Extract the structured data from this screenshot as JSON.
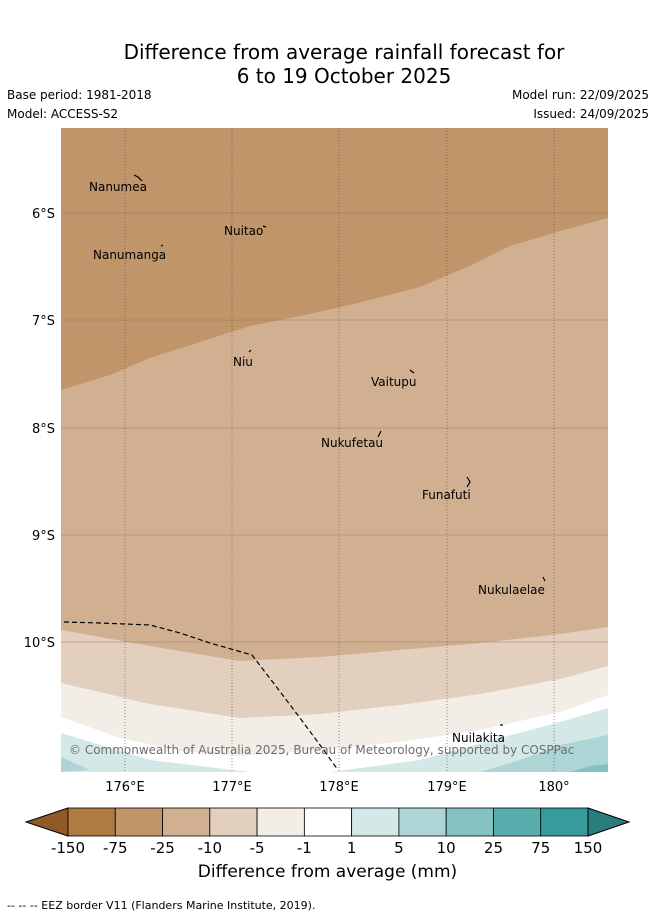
{
  "title_line1": "Difference from average rainfall forecast for",
  "title_line2": "6 to 19 October 2025",
  "base_period": "Base period: 1981-2018",
  "model": "Model: ACCESS-S2",
  "model_run": "Model run: 22/09/2025",
  "issued": "Issued: 24/09/2025",
  "lat_labels": [
    "6°S",
    "7°S",
    "8°S",
    "9°S",
    "10°S"
  ],
  "lon_labels": [
    "176°E",
    "177°E",
    "178°E",
    "179°E",
    "180°"
  ],
  "islands": [
    "Nanumea",
    "Nuitao",
    "Nanumanga",
    "Niu",
    "Vaitupu",
    "Nukufetau",
    "Funafuti",
    "Nukulaelae",
    "Nuilakita"
  ],
  "copyright": "© Commonwealth of Australia 2025, Bureau of Meteorology, supported by COSPPac",
  "legend": {
    "title": "Difference from average (mm)",
    "ticks": [
      "-150",
      "-75",
      "-25",
      "-10",
      "-5",
      "-1",
      "1",
      "5",
      "10",
      "25",
      "75",
      "150"
    ],
    "colors": [
      "#8f5a27",
      "#b07a43",
      "#c0956a",
      "#d1b092",
      "#e2cfbe",
      "#f2ede7",
      "#ffffff",
      "#d4e8e8",
      "#aed5d5",
      "#86c1c1",
      "#5aadad",
      "#369b9b",
      "#2b7c7c"
    ]
  },
  "footnote": "-- -- -- EEZ border V11 (Flanders Marine Institute, 2019)."
}
